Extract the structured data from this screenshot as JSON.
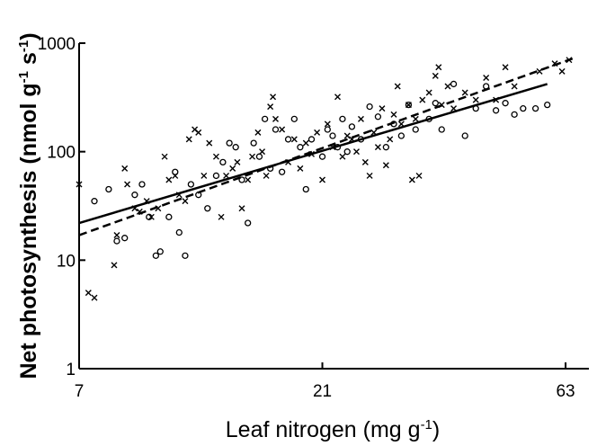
{
  "chart_data": {
    "type": "scatter",
    "title": "",
    "xlabel": "Leaf nitrogen (mg g⁻¹)",
    "ylabel": "Net photosynthesis (nmol g⁻¹ s⁻¹)",
    "x_scale": "log",
    "y_scale": "log",
    "xlim": [
      7,
      70
    ],
    "ylim": [
      1,
      1000
    ],
    "xticks": [
      7,
      21,
      63
    ],
    "xtick_labels": [
      "7",
      "21",
      "63"
    ],
    "yticks": [
      1,
      10,
      100,
      1000
    ],
    "ytick_labels": [
      "1",
      "10",
      "100",
      "1000"
    ],
    "grid": false,
    "legend": null,
    "series": [
      {
        "marker": "x",
        "points": [
          [
            7.0,
            50
          ],
          [
            7.3,
            5
          ],
          [
            7.5,
            4.5
          ],
          [
            8.2,
            9
          ],
          [
            8.3,
            17
          ],
          [
            8.6,
            70
          ],
          [
            8.7,
            50
          ],
          [
            9.0,
            30
          ],
          [
            9.2,
            28
          ],
          [
            9.5,
            35
          ],
          [
            9.7,
            25
          ],
          [
            10.0,
            30
          ],
          [
            10.3,
            90
          ],
          [
            10.5,
            55
          ],
          [
            10.8,
            60
          ],
          [
            11.0,
            40
          ],
          [
            11.3,
            35
          ],
          [
            11.5,
            130
          ],
          [
            11.8,
            160
          ],
          [
            12.0,
            150
          ],
          [
            12.3,
            60
          ],
          [
            12.6,
            120
          ],
          [
            13.0,
            90
          ],
          [
            13.3,
            25
          ],
          [
            13.6,
            60
          ],
          [
            14.0,
            70
          ],
          [
            14.3,
            80
          ],
          [
            14.6,
            30
          ],
          [
            15.0,
            55
          ],
          [
            15.3,
            90
          ],
          [
            15.7,
            150
          ],
          [
            16.0,
            100
          ],
          [
            16.3,
            60
          ],
          [
            16.6,
            260
          ],
          [
            16.8,
            320
          ],
          [
            17.0,
            200
          ],
          [
            17.5,
            160
          ],
          [
            18.0,
            80
          ],
          [
            18.5,
            130
          ],
          [
            19.0,
            70
          ],
          [
            19.5,
            120
          ],
          [
            20.0,
            95
          ],
          [
            20.5,
            150
          ],
          [
            21.0,
            55
          ],
          [
            21.5,
            180
          ],
          [
            22.0,
            110
          ],
          [
            22.5,
            320
          ],
          [
            23.0,
            90
          ],
          [
            23.5,
            140
          ],
          [
            24.0,
            130
          ],
          [
            24.5,
            100
          ],
          [
            25.0,
            200
          ],
          [
            25.5,
            80
          ],
          [
            26.0,
            60
          ],
          [
            26.5,
            150
          ],
          [
            27.0,
            110
          ],
          [
            27.5,
            250
          ],
          [
            28.0,
            75
          ],
          [
            28.5,
            130
          ],
          [
            29.0,
            220
          ],
          [
            29.5,
            400
          ],
          [
            30.0,
            180
          ],
          [
            31.0,
            270
          ],
          [
            31.5,
            55
          ],
          [
            32.0,
            200
          ],
          [
            32.5,
            60
          ],
          [
            33.0,
            300
          ],
          [
            34.0,
            350
          ],
          [
            35.0,
            500
          ],
          [
            35.5,
            600
          ],
          [
            36.0,
            270
          ],
          [
            37.0,
            400
          ],
          [
            38.0,
            250
          ],
          [
            40.0,
            350
          ],
          [
            42.0,
            300
          ],
          [
            44.0,
            480
          ],
          [
            46.0,
            300
          ],
          [
            48.0,
            600
          ],
          [
            50.0,
            400
          ],
          [
            56.0,
            550
          ],
          [
            60.0,
            650
          ],
          [
            62.0,
            550
          ],
          [
            64.0,
            700
          ]
        ]
      },
      {
        "marker": "o",
        "points": [
          [
            7.5,
            35
          ],
          [
            8.0,
            45
          ],
          [
            8.3,
            15
          ],
          [
            8.6,
            16
          ],
          [
            9.0,
            40
          ],
          [
            9.3,
            50
          ],
          [
            9.6,
            25
          ],
          [
            9.9,
            11
          ],
          [
            10.1,
            12
          ],
          [
            10.5,
            25
          ],
          [
            10.8,
            65
          ],
          [
            11.0,
            18
          ],
          [
            11.3,
            11
          ],
          [
            11.6,
            50
          ],
          [
            12.0,
            40
          ],
          [
            12.5,
            30
          ],
          [
            13.0,
            60
          ],
          [
            13.4,
            80
          ],
          [
            13.8,
            120
          ],
          [
            14.2,
            110
          ],
          [
            14.6,
            55
          ],
          [
            15.0,
            22
          ],
          [
            15.4,
            120
          ],
          [
            15.8,
            90
          ],
          [
            16.2,
            200
          ],
          [
            16.6,
            70
          ],
          [
            17.0,
            160
          ],
          [
            17.5,
            65
          ],
          [
            18.0,
            130
          ],
          [
            18.5,
            200
          ],
          [
            19.0,
            110
          ],
          [
            19.5,
            45
          ],
          [
            20.0,
            130
          ],
          [
            21.0,
            90
          ],
          [
            21.5,
            160
          ],
          [
            22.0,
            140
          ],
          [
            22.5,
            110
          ],
          [
            23.0,
            200
          ],
          [
            23.5,
            100
          ],
          [
            24.0,
            170
          ],
          [
            25.0,
            130
          ],
          [
            26.0,
            260
          ],
          [
            27.0,
            210
          ],
          [
            28.0,
            110
          ],
          [
            29.0,
            180
          ],
          [
            30.0,
            140
          ],
          [
            31.0,
            270
          ],
          [
            32.0,
            160
          ],
          [
            34.0,
            200
          ],
          [
            35.0,
            280
          ],
          [
            36.0,
            160
          ],
          [
            38.0,
            420
          ],
          [
            40.0,
            140
          ],
          [
            42.0,
            250
          ],
          [
            44.0,
            400
          ],
          [
            46.0,
            240
          ],
          [
            48.0,
            280
          ],
          [
            50.0,
            220
          ],
          [
            52.0,
            250
          ],
          [
            55.0,
            250
          ],
          [
            58.0,
            270
          ]
        ]
      }
    ],
    "fit_lines": [
      {
        "style": "solid",
        "x": [
          7,
          58
        ],
        "y": [
          22,
          420
        ]
      },
      {
        "style": "dashed",
        "x": [
          7,
          65
        ],
        "y": [
          17,
          720
        ]
      }
    ]
  }
}
